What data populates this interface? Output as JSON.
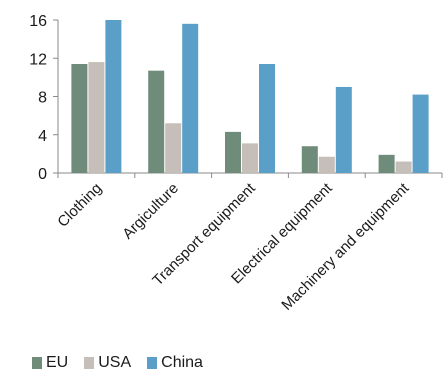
{
  "chart_data": {
    "type": "bar",
    "categories": [
      "Clothing",
      "Argiculture",
      "Transport equipment",
      "Electrical equipment",
      "Machinery and equipment"
    ],
    "series": [
      {
        "name": "EU",
        "color": "#6f8c7a",
        "values": [
          11.4,
          10.7,
          4.3,
          2.8,
          1.9
        ]
      },
      {
        "name": "USA",
        "color": "#c6bfb9",
        "values": [
          11.6,
          5.2,
          3.1,
          1.7,
          1.2
        ]
      },
      {
        "name": "China",
        "color": "#5a9fc8",
        "values": [
          16.0,
          15.6,
          11.4,
          9.0,
          8.2
        ]
      }
    ],
    "yticks": [
      "0",
      "4",
      "8",
      "12",
      "16"
    ],
    "ylim": [
      0,
      16
    ],
    "legend_position": "bottom-left",
    "grid": false
  }
}
